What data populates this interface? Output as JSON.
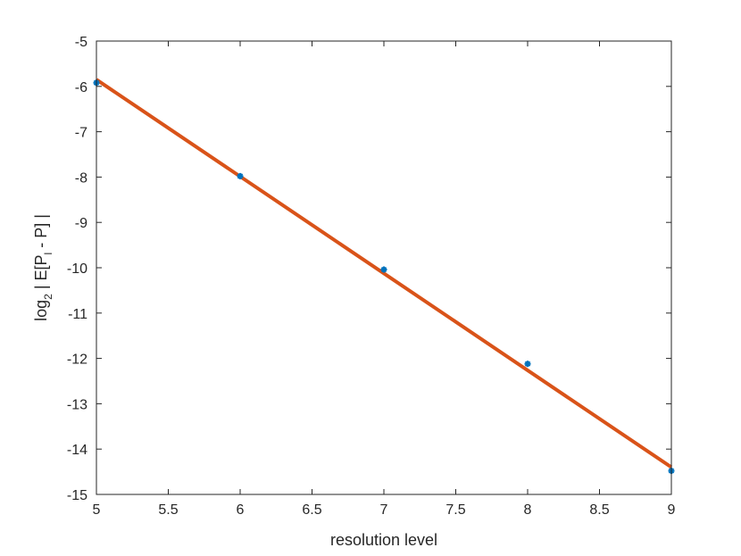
{
  "chart_data": {
    "type": "scatter",
    "xlabel": "resolution level",
    "ylabel": {
      "base": "log",
      "subscript": "2",
      "mid": " | E[P",
      "index": "l",
      "end": " - P] |"
    },
    "xlim": [
      5,
      9
    ],
    "ylim": [
      -15,
      -5
    ],
    "xticks": [
      "5",
      "5.5",
      "6",
      "6.5",
      "7",
      "7.5",
      "8",
      "8.5",
      "9"
    ],
    "yticks": [
      "-5",
      "-6",
      "-7",
      "-8",
      "-9",
      "-10",
      "-11",
      "-12",
      "-13",
      "-14",
      "-15"
    ],
    "grid": false,
    "series": [
      {
        "type": "scatter",
        "marker": "asterisk",
        "color": "#0072BD",
        "x": [
          5,
          6,
          7,
          8,
          9
        ],
        "y": [
          -5.92,
          -7.98,
          -10.04,
          -12.12,
          -14.48
        ]
      },
      {
        "type": "line",
        "color": "#D95319",
        "x": [
          5,
          9
        ],
        "y": [
          -5.85,
          -14.4
        ]
      }
    ]
  }
}
